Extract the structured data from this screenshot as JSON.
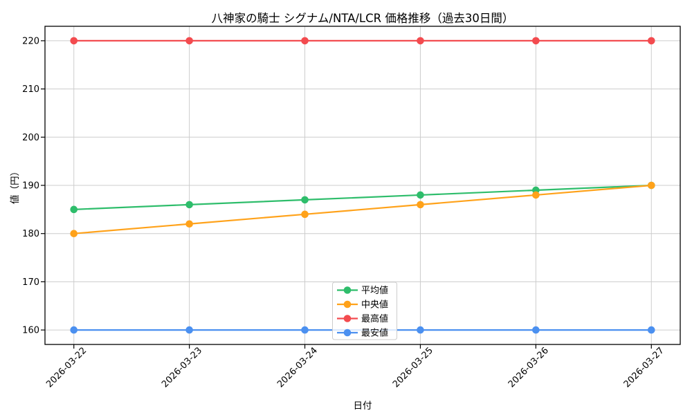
{
  "chart_data": {
    "type": "line",
    "title": "八神家の騎士 シグナム/NTA/LCR 価格推移（過去30日間）",
    "xlabel": "日付",
    "ylabel": "値（円）",
    "categories": [
      "2026-03-22",
      "2026-03-23",
      "2026-03-24",
      "2026-03-25",
      "2026-03-26",
      "2026-03-27"
    ],
    "series": [
      {
        "name": "平均値",
        "color": "#2ebd6b",
        "values": [
          185,
          186,
          187,
          188,
          189,
          190
        ]
      },
      {
        "name": "中央値",
        "color": "#ffa21a",
        "values": [
          180,
          182,
          184,
          186,
          188,
          190
        ]
      },
      {
        "name": "最高値",
        "color": "#f34b4f",
        "values": [
          220,
          220,
          220,
          220,
          220,
          220
        ]
      },
      {
        "name": "最安値",
        "color": "#4b90f0",
        "values": [
          160,
          160,
          160,
          160,
          160,
          160
        ]
      }
    ],
    "yticks": [
      160,
      170,
      180,
      190,
      200,
      210,
      220
    ],
    "ylim": [
      157,
      223
    ],
    "grid": true,
    "grid_color": "#cccccc",
    "spine_color": "#000000",
    "legend_position": "lower-center",
    "x_tick_rotation": 45
  }
}
